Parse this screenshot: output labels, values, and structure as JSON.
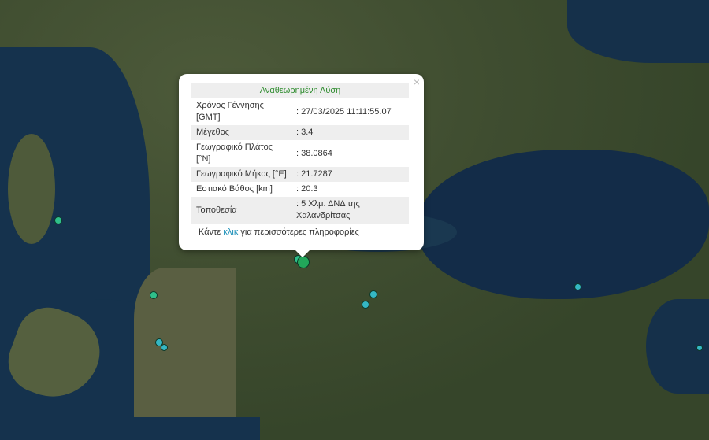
{
  "popup": {
    "title": "Αναθεωρημένη Λύση",
    "close": "×",
    "rows": [
      {
        "label": "Χρόνος Γέννησης [GMT]",
        "value": ": 27/03/2025 11:11:55.07"
      },
      {
        "label": "Μέγεθος",
        "value": ": 3.4"
      },
      {
        "label": "Γεωγραφικό Πλάτος [°N]",
        "value": ": 38.0864"
      },
      {
        "label": "Γεωγραφικό Μήκος [°E]",
        "value": ": 21.7287"
      },
      {
        "label": "Εστιακό Βάθος [km]",
        "value": ": 20.3"
      },
      {
        "label": "Τοποθεσία",
        "value": ": 5 Χλμ. ΔΝΔ της Χαλανδρίτσας"
      }
    ],
    "more_prefix": "Κάντε ",
    "more_link": "κλικ",
    "more_suffix": " για περισσότερες πληροφορίες"
  },
  "colors": {
    "older_event": "#2fbf8a",
    "recent_event": "#35b7c4",
    "selected_event": "#22a75a"
  }
}
